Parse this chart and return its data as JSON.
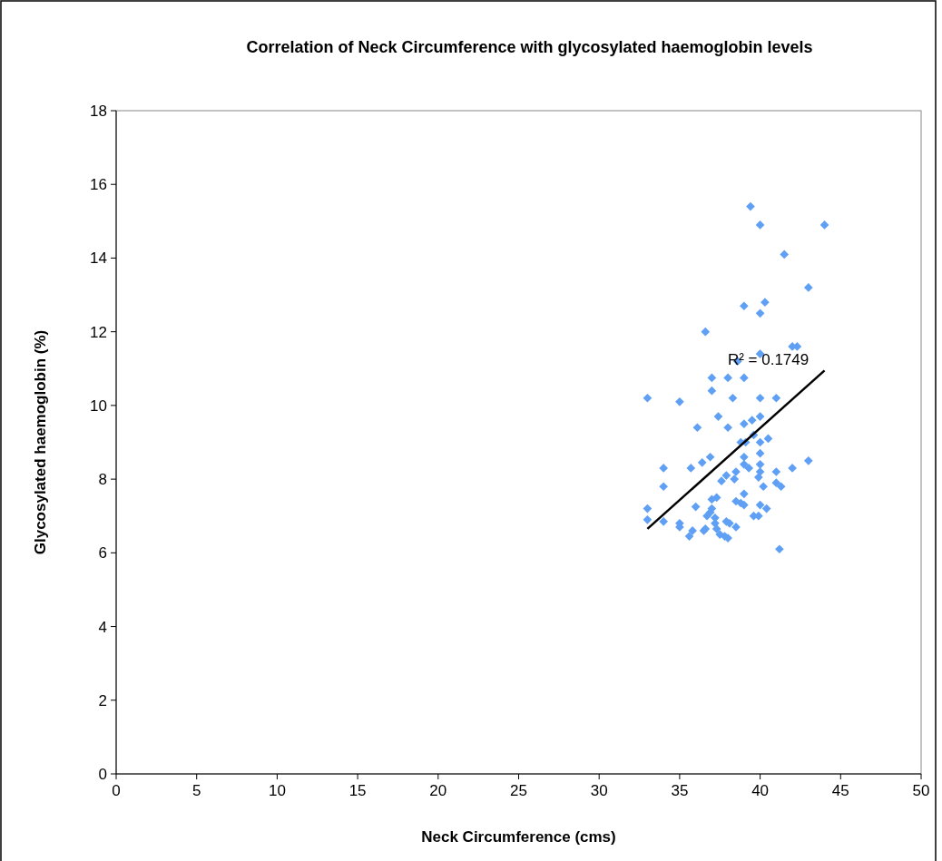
{
  "chart_data": {
    "type": "scatter",
    "title": "Correlation of Neck Circumference with glycosylated haemoglobin levels",
    "xlabel": "Neck Circumference (cms)",
    "ylabel": "Glycosylated haemoglobin (%)",
    "xlim": [
      0,
      50
    ],
    "xticks": [
      0,
      5,
      10,
      15,
      20,
      25,
      30,
      35,
      40,
      45,
      50
    ],
    "ylim": [
      0,
      18
    ],
    "yticks": [
      0,
      2,
      4,
      6,
      8,
      10,
      12,
      14,
      16,
      18
    ],
    "grid": false,
    "marker": "diamond",
    "annotations": [
      "R² = 0.1749"
    ],
    "series": [
      {
        "color": "#5fa0f5",
        "x": [
          39.4,
          40,
          44,
          41.5,
          43,
          40.3,
          39,
          40,
          36.6,
          42,
          42.3,
          40,
          38.6,
          37,
          38,
          39,
          33,
          35,
          37,
          38.3,
          40,
          41,
          37.4,
          40,
          36.1,
          38,
          39.5,
          39,
          40.5,
          39.6,
          38.8,
          39.1,
          40,
          40,
          39,
          43,
          36.9,
          36.4,
          34,
          35.7,
          39,
          39.3,
          40,
          40,
          42,
          41,
          38.5,
          37.9,
          38.4,
          37.6,
          39.9,
          34,
          41.3,
          41,
          40.2,
          39,
          38.5,
          38.8,
          39,
          37.3,
          37,
          37,
          36,
          33,
          40,
          40.4,
          36.9,
          36.7,
          37.2,
          33,
          39.6,
          39.9,
          34,
          35,
          35,
          37.9,
          38.1,
          37.2,
          38.5,
          36.6,
          36.5,
          35.8,
          35.6,
          37.3,
          37.5,
          37.8,
          38,
          41.2
        ],
        "values": [
          15.4,
          14.9,
          14.9,
          14.1,
          13.2,
          12.8,
          12.7,
          12.5,
          12,
          11.6,
          11.6,
          11.4,
          11.2,
          10.75,
          10.75,
          10.75,
          10.2,
          10.1,
          10.4,
          10.2,
          10.2,
          10.2,
          9.7,
          9.7,
          9.4,
          9.4,
          9.6,
          9.5,
          9.1,
          9.2,
          9,
          9,
          9,
          8.7,
          8.6,
          8.5,
          8.6,
          8.45,
          8.3,
          8.3,
          8.4,
          8.3,
          8.4,
          8.2,
          8.3,
          8.2,
          8.2,
          8.1,
          8,
          7.95,
          8.05,
          7.8,
          7.8,
          7.9,
          7.8,
          7.6,
          7.4,
          7.35,
          7.3,
          7.5,
          7.45,
          7.2,
          7.25,
          7.2,
          7.3,
          7.2,
          7.1,
          7,
          6.95,
          6.9,
          7,
          7,
          6.85,
          6.8,
          6.7,
          6.85,
          6.8,
          6.8,
          6.7,
          6.65,
          6.6,
          6.6,
          6.45,
          6.65,
          6.5,
          6.45,
          6.4,
          6.1
        ]
      },
      {
        "type": "line",
        "color": "#000000",
        "marker": "none",
        "x": [
          33,
          44
        ],
        "values": [
          6.65,
          10.95
        ]
      }
    ]
  }
}
